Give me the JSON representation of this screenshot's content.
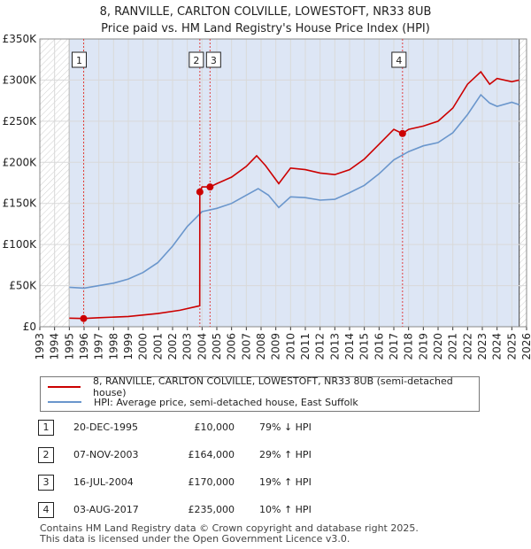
{
  "title_line1": "8, RANVILLE, CARLTON COLVILLE, LOWESTOFT, NR33 8UB",
  "title_line2": "Price paid vs. HM Land Registry's House Price Index (HPI)",
  "colors": {
    "price": "#cc0000",
    "hpi": "#6a96cc",
    "band": "#dde6f5",
    "grid": "#d9d9d9",
    "marker_line": "#e04040"
  },
  "chart_data": {
    "type": "line",
    "x_range": [
      1993,
      2026
    ],
    "ylim": [
      0,
      350000
    ],
    "yticks": [
      0,
      50000,
      100000,
      150000,
      200000,
      250000,
      300000,
      350000
    ],
    "ytick_labels": [
      "£0",
      "£50K",
      "£100K",
      "£150K",
      "£200K",
      "£250K",
      "£300K",
      "£350K"
    ],
    "xticks": [
      1993,
      1994,
      1995,
      1996,
      1997,
      1998,
      1999,
      2000,
      2001,
      2002,
      2003,
      2004,
      2005,
      2006,
      2007,
      2008,
      2009,
      2010,
      2011,
      2012,
      2013,
      2014,
      2015,
      2016,
      2017,
      2018,
      2019,
      2020,
      2021,
      2022,
      2023,
      2024,
      2025,
      2026
    ],
    "data_range": [
      1995.0,
      2025.5
    ],
    "series": [
      {
        "name": "8, RANVILLE, CARLTON COLVILLE, LOWESTOFT, NR33 8UB (semi-detached house)",
        "x": [
          1995.0,
          1995.97,
          1997,
          1999,
          2001,
          2002.5,
          2003.84,
          2003.85,
          2004.0,
          2004.54,
          2005,
          2006,
          2007,
          2007.7,
          2008.3,
          2009.2,
          2010,
          2011,
          2012,
          2013,
          2014,
          2015,
          2016,
          2017.0,
          2017.59,
          2018,
          2019,
          2020,
          2021,
          2022,
          2022.9,
          2023.5,
          2024,
          2025,
          2025.5
        ],
        "y": [
          10500,
          10000,
          11000,
          12500,
          16000,
          20000,
          25500,
          164000,
          170000,
          170000,
          174000,
          182000,
          195000,
          208000,
          196000,
          174000,
          193000,
          191000,
          187000,
          185000,
          191000,
          204000,
          222000,
          240000,
          235000,
          240000,
          244000,
          250000,
          266000,
          295000,
          310000,
          295000,
          302000,
          298000,
          300000
        ]
      },
      {
        "name": "HPI: Average price, semi-detached house, East Suffolk",
        "x": [
          1995.0,
          1996,
          1997,
          1998,
          1999,
          2000,
          2001,
          2002,
          2003,
          2004,
          2005,
          2006,
          2007,
          2007.8,
          2008.5,
          2009.2,
          2010,
          2011,
          2012,
          2013,
          2014,
          2015,
          2016,
          2017,
          2018,
          2019,
          2020,
          2021,
          2022,
          2022.9,
          2023.5,
          2024,
          2025,
          2025.5
        ],
        "y": [
          48000,
          47000,
          50000,
          53000,
          58000,
          66000,
          78000,
          98000,
          122000,
          140000,
          144000,
          150000,
          160000,
          168000,
          160000,
          145000,
          158000,
          157000,
          154000,
          155000,
          163000,
          172000,
          186000,
          203000,
          213000,
          220000,
          224000,
          236000,
          258000,
          282000,
          272000,
          268000,
          273000,
          270000
        ]
      }
    ],
    "transactions": [
      {
        "label": "1",
        "x": 1995.97,
        "y": 10000
      },
      {
        "label": "2",
        "x": 2003.85,
        "y": 164000
      },
      {
        "label": "3",
        "x": 2004.54,
        "y": 170000
      },
      {
        "label": "4",
        "x": 2017.59,
        "y": 235000
      }
    ]
  },
  "legend": {
    "price_label": "8, RANVILLE, CARLTON COLVILLE, LOWESTOFT, NR33 8UB (semi-detached house)",
    "hpi_label": "HPI: Average price, semi-detached house, East Suffolk"
  },
  "table": [
    {
      "num": "1",
      "date": "20-DEC-1995",
      "price": "£10,000",
      "hpi": "79% ↓ HPI"
    },
    {
      "num": "2",
      "date": "07-NOV-2003",
      "price": "£164,000",
      "hpi": "29% ↑ HPI"
    },
    {
      "num": "3",
      "date": "16-JUL-2004",
      "price": "£170,000",
      "hpi": "19% ↑ HPI"
    },
    {
      "num": "4",
      "date": "03-AUG-2017",
      "price": "£235,000",
      "hpi": "10% ↑ HPI"
    }
  ],
  "footer_line1": "Contains HM Land Registry data © Crown copyright and database right 2025.",
  "footer_line2": "This data is licensed under the Open Government Licence v3.0."
}
